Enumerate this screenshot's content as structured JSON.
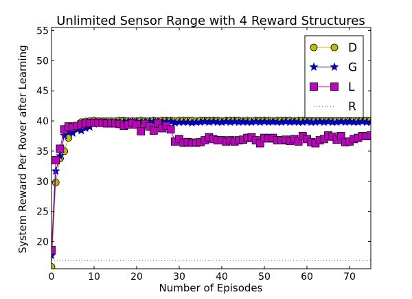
{
  "chart_data": {
    "type": "line",
    "title": "Unlimited Sensor Range with 4 Reward Structures",
    "xlabel": "Number of Episodes",
    "ylabel": "System Reward Per Rover after Learning",
    "xlim": [
      0,
      75
    ],
    "ylim": [
      15.5,
      55.5
    ],
    "xticks": [
      0,
      10,
      20,
      30,
      40,
      50,
      60,
      70
    ],
    "yticks": [
      20,
      25,
      30,
      35,
      40,
      45,
      50,
      55
    ],
    "grid": false,
    "legend_position": "top-right",
    "x": [
      0,
      1,
      2,
      3,
      4,
      5,
      6,
      7,
      8,
      9,
      10,
      11,
      12,
      13,
      14,
      15,
      16,
      17,
      18,
      19,
      20,
      21,
      22,
      23,
      24,
      25,
      26,
      27,
      28,
      29,
      30,
      31,
      32,
      33,
      34,
      35,
      36,
      37,
      38,
      39,
      40,
      41,
      42,
      43,
      44,
      45,
      46,
      47,
      48,
      49,
      50,
      51,
      52,
      53,
      54,
      55,
      56,
      57,
      58,
      59,
      60,
      61,
      62,
      63,
      64,
      65,
      66,
      67,
      68,
      69,
      70,
      71,
      72,
      73,
      74,
      75
    ],
    "series": [
      {
        "name": "D",
        "color": "#bfbf00",
        "marker": "circle",
        "line_style": "solid",
        "values": [
          15.8,
          29.8,
          33.8,
          35.0,
          37.2,
          38.5,
          39.2,
          39.8,
          39.9,
          40.0,
          40.1,
          40.0,
          40.0,
          40.0,
          40.0,
          40.0,
          40.1,
          40.1,
          40.0,
          40.0,
          40.0,
          40.1,
          40.0,
          40.0,
          40.1,
          40.0,
          40.1,
          40.1,
          40.1,
          40.0,
          40.1,
          40.1,
          40.1,
          40.1,
          40.0,
          40.1,
          40.1,
          40.1,
          40.1,
          40.1,
          40.0,
          40.1,
          40.1,
          40.1,
          40.1,
          40.0,
          40.1,
          40.0,
          40.1,
          40.1,
          40.1,
          40.1,
          40.0,
          40.1,
          40.1,
          40.1,
          40.1,
          40.0,
          40.1,
          40.1,
          40.1,
          40.0,
          40.1,
          40.1,
          40.1,
          40.1,
          40.0,
          40.1,
          40.1,
          40.1,
          40.0,
          40.1,
          40.0,
          40.1,
          40.1,
          40.1
        ]
      },
      {
        "name": "G",
        "color": "#0000bf",
        "marker": "star",
        "line_style": "solid",
        "values": [
          17.7,
          31.7,
          34.2,
          37.6,
          38.2,
          38.0,
          38.6,
          38.4,
          38.8,
          39.0,
          39.5,
          39.6,
          39.7,
          39.7,
          39.8,
          39.8,
          39.8,
          39.9,
          39.9,
          39.9,
          39.9,
          39.8,
          39.9,
          39.9,
          39.9,
          39.9,
          39.8,
          39.9,
          39.9,
          39.7,
          39.8,
          39.8,
          39.8,
          39.7,
          39.8,
          39.8,
          39.9,
          39.8,
          39.9,
          39.8,
          39.8,
          39.9,
          39.8,
          39.9,
          39.8,
          39.9,
          39.8,
          39.8,
          39.9,
          39.8,
          39.9,
          39.8,
          39.9,
          39.8,
          39.8,
          39.9,
          39.8,
          39.9,
          39.8,
          39.8,
          39.9,
          39.8,
          39.8,
          39.9,
          39.8,
          39.9,
          39.8,
          39.8,
          39.9,
          39.8,
          39.9,
          39.8,
          39.8,
          39.9,
          39.8,
          39.8
        ]
      },
      {
        "name": "L",
        "color": "#bf00bf",
        "marker": "square",
        "line_style": "solid",
        "values": [
          18.6,
          33.5,
          35.4,
          38.6,
          39.1,
          39.0,
          39.2,
          39.4,
          39.6,
          39.7,
          39.7,
          39.7,
          39.7,
          39.6,
          39.6,
          39.6,
          39.5,
          39.2,
          39.4,
          39.7,
          39.4,
          38.3,
          39.5,
          39.1,
          38.4,
          39.6,
          38.8,
          39.2,
          38.6,
          36.6,
          37.0,
          36.4,
          36.5,
          36.4,
          36.4,
          36.5,
          36.8,
          37.3,
          37.0,
          36.8,
          36.8,
          36.6,
          36.8,
          36.6,
          36.8,
          36.9,
          37.2,
          37.3,
          36.8,
          36.3,
          37.2,
          37.1,
          37.2,
          36.8,
          36.8,
          36.9,
          36.7,
          37.0,
          36.6,
          37.5,
          37.0,
          36.5,
          36.3,
          36.8,
          37.0,
          37.6,
          37.4,
          36.9,
          37.5,
          36.5,
          36.6,
          37.0,
          37.2,
          37.5,
          37.5,
          37.6
        ]
      },
      {
        "name": "R",
        "color": "#008000",
        "marker": "none",
        "line_style": "dotted",
        "values": [
          16.9,
          16.9,
          16.9,
          16.9,
          16.9,
          16.9,
          16.9,
          16.9,
          16.9,
          16.9,
          16.9,
          16.9,
          16.9,
          16.9,
          16.9,
          16.9,
          16.9,
          16.9,
          16.9,
          16.9,
          16.9,
          16.9,
          16.9,
          16.9,
          16.9,
          16.9,
          16.9,
          16.9,
          16.9,
          16.9,
          16.9,
          16.9,
          16.9,
          16.9,
          16.9,
          16.9,
          16.9,
          16.9,
          16.9,
          16.9,
          16.9,
          16.9,
          16.9,
          16.9,
          16.9,
          16.9,
          16.9,
          16.9,
          16.9,
          16.9,
          16.9,
          16.9,
          16.9,
          16.9,
          16.9,
          16.9,
          16.9,
          16.9,
          16.9,
          16.9,
          16.9,
          16.9,
          16.9,
          16.9,
          16.9,
          16.9,
          16.9,
          16.9,
          16.9,
          16.9,
          16.9,
          16.9,
          16.9,
          16.9,
          16.9,
          16.9
        ]
      }
    ]
  }
}
